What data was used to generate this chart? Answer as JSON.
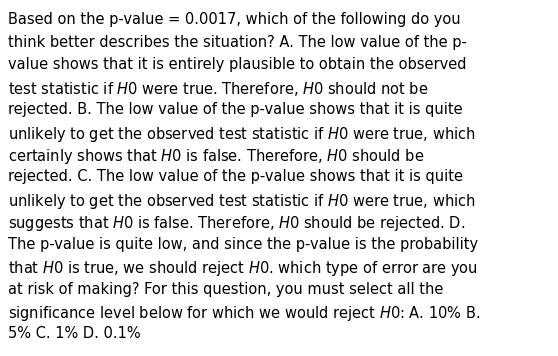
{
  "background_color": "#ffffff",
  "text_color": "#000000",
  "font_size": 10.5,
  "fig_width": 5.58,
  "fig_height": 3.56,
  "lines": [
    "Based on the p-value = 0.0017, which of the following do you",
    "think better describes the situation? A. The low value of the p-",
    "value shows that it is entirely plausible to obtain the observed",
    "test statistic if $\\mathit{H}$0 were true. Therefore, $\\mathit{H}$0 should not be",
    "rejected. B. The low value of the p-value shows that it is quite",
    "unlikely to get the observed test statistic if $\\mathit{H}$0 were true, which",
    "certainly shows that $\\mathit{H}$0 is false. Therefore, $\\mathit{H}$0 should be",
    "rejected. C. The low value of the p-value shows that it is quite",
    "unlikely to get the observed test statistic if $\\mathit{H}$0 were true, which",
    "suggests that $\\mathit{H}$0 is false. Therefore, $\\mathit{H}$0 should be rejected. D.",
    "The p-value is quite low, and since the p-value is the probability",
    "that $\\mathit{H}$0 is true, we should reject $\\mathit{H}$0. which type of error are you",
    "at risk of making? For this question, you must select all the",
    "significance level below for which we would reject $\\mathit{H}$0: A. 10% B.",
    "5% C. 1% D. 0.1%"
  ]
}
